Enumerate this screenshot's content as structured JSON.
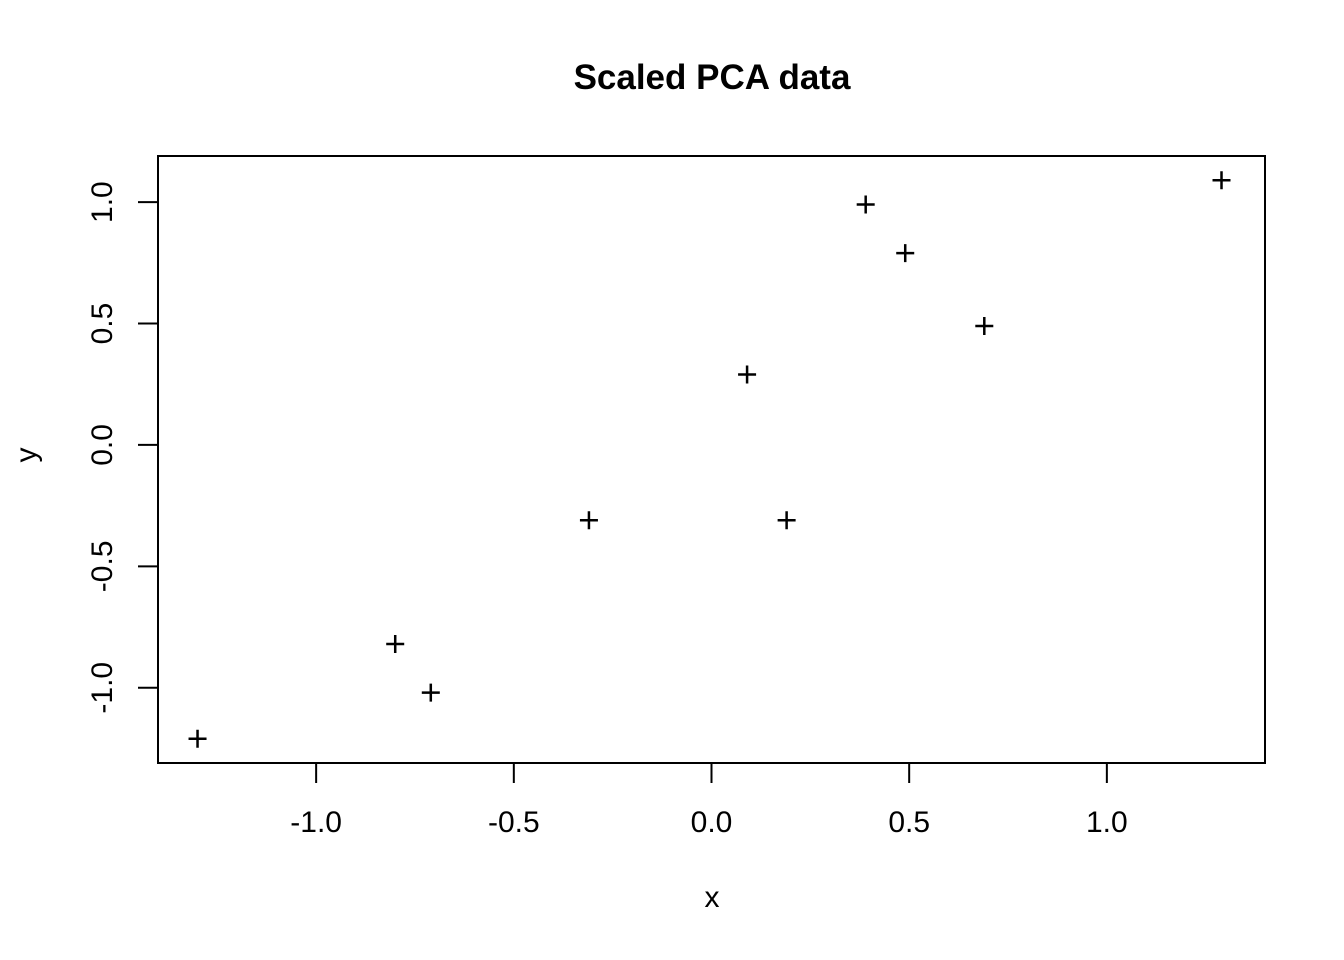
{
  "chart_data": {
    "type": "scatter",
    "title": "Scaled PCA data",
    "xlabel": "x",
    "ylabel": "y",
    "xlim": [
      -1.4,
      1.4
    ],
    "ylim": [
      -1.31,
      1.19
    ],
    "x_ticks": [
      -1.0,
      -0.5,
      0.0,
      0.5,
      1.0
    ],
    "x_tick_labels": [
      "-1.0",
      "-0.5",
      "0.0",
      "0.5",
      "1.0"
    ],
    "y_ticks": [
      -1.0,
      -0.5,
      0.0,
      0.5,
      1.0
    ],
    "y_tick_labels": [
      "-1.0",
      "-0.5",
      "0.0",
      "0.5",
      "1.0"
    ],
    "grid": false,
    "legend": null,
    "marker": "plus",
    "marker_color": "#000000",
    "background_color": "#ffffff",
    "points": [
      {
        "x": 1.29,
        "y": 1.09
      },
      {
        "x": 0.39,
        "y": 0.99
      },
      {
        "x": 0.49,
        "y": 0.79
      },
      {
        "x": 0.69,
        "y": 0.49
      },
      {
        "x": 0.09,
        "y": 0.29
      },
      {
        "x": -0.31,
        "y": -0.31
      },
      {
        "x": 0.19,
        "y": -0.31
      },
      {
        "x": -0.8,
        "y": -0.82
      },
      {
        "x": -0.71,
        "y": -1.02
      },
      {
        "x": -1.3,
        "y": -1.21
      }
    ]
  }
}
